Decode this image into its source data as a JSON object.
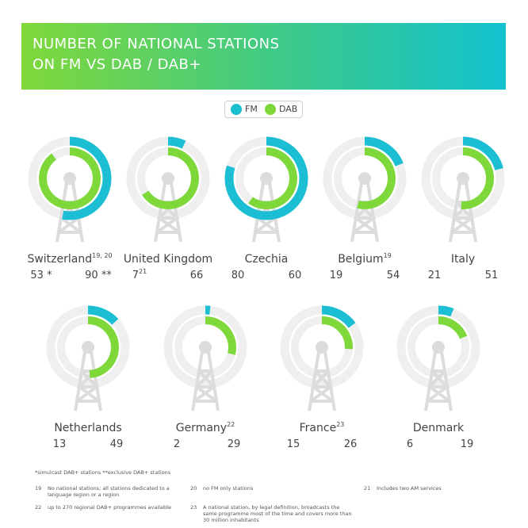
{
  "title_line1": "NUMBER OF NATIONAL STATIONS",
  "title_line2": "ON FM VS DAB / DAB+",
  "legend": {
    "fm": "FM",
    "dab": "DAB"
  },
  "colors": {
    "fm": "#1bbed2",
    "dab": "#7ed83a",
    "ring": "#efefef",
    "tower": "#dcdcdc",
    "banner_start": "#7fd83a",
    "banner_end": "#12c2cf"
  },
  "chart_data": {
    "type": "pie",
    "title": "NUMBER OF NATIONAL STATIONS ON FM VS DAB / DAB+",
    "legend_placement": "top-center",
    "max_value": 100,
    "series_names": [
      "FM",
      "DAB"
    ],
    "countries": [
      {
        "name": "Switzerland",
        "sup": "19, 20",
        "fm": 53,
        "fm_label": "53 *",
        "fm_sup": "",
        "dab": 90,
        "dab_label": "90 **"
      },
      {
        "name": "United Kingdom",
        "sup": "",
        "fm": 7,
        "fm_label": "7",
        "fm_sup": "21",
        "dab": 66,
        "dab_label": "66"
      },
      {
        "name": "Czechia",
        "sup": "",
        "fm": 80,
        "fm_label": "80",
        "fm_sup": "",
        "dab": 60,
        "dab_label": "60"
      },
      {
        "name": "Belgium",
        "sup": "19",
        "fm": 19,
        "fm_label": "19",
        "fm_sup": "",
        "dab": 54,
        "dab_label": "54"
      },
      {
        "name": "Italy",
        "sup": "",
        "fm": 21,
        "fm_label": "21",
        "fm_sup": "",
        "dab": 51,
        "dab_label": "51"
      },
      {
        "name": "Netherlands",
        "sup": "",
        "fm": 13,
        "fm_label": "13",
        "fm_sup": "",
        "dab": 49,
        "dab_label": "49"
      },
      {
        "name": "Germany",
        "sup": "22",
        "fm": 2,
        "fm_label": "2",
        "fm_sup": "",
        "dab": 29,
        "dab_label": "29"
      },
      {
        "name": "France",
        "sup": "23",
        "fm": 15,
        "fm_label": "15",
        "fm_sup": "",
        "dab": 26,
        "dab_label": "26"
      },
      {
        "name": "Denmark",
        "sup": "",
        "fm": 6,
        "fm_label": "6",
        "fm_sup": "",
        "dab": 19,
        "dab_label": "19"
      }
    ]
  },
  "footnotes": {
    "legend_note": "*simulcast DAB+ stations   **exclusive DAB+ stations",
    "items": [
      {
        "num": "19",
        "text": "No national stations; all stations dedicated to a language region or a region"
      },
      {
        "num": "20",
        "text": "no FM only stations"
      },
      {
        "num": "21",
        "text": "Includes two AM services"
      },
      {
        "num": "22",
        "text": "up to 270 regional DAB+ programmes available"
      },
      {
        "num": "23",
        "text": "A national station, by legal definition, broadcasts the same programme most of the time and covers more than 30 million inhabitants"
      }
    ]
  }
}
